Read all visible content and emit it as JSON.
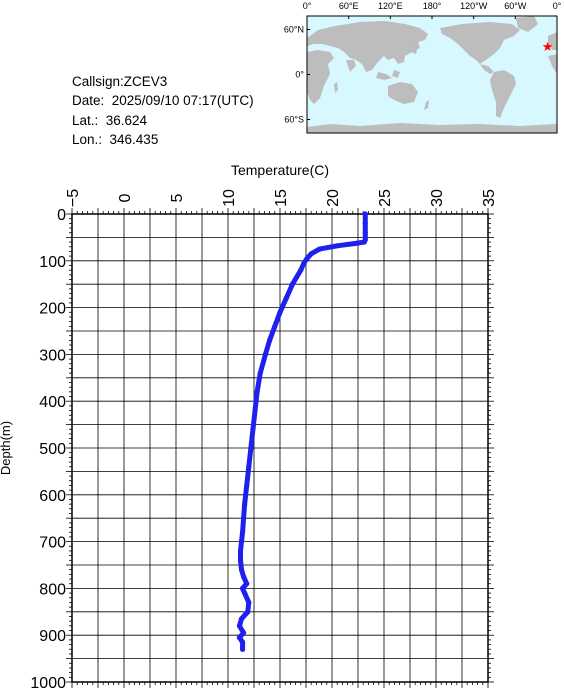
{
  "info": {
    "callsign": "Callsign:ZCEV3",
    "date": "Date:  2025/09/10 07:17(UTC)",
    "lat": "Lat.:  36.624",
    "lon": "Lon.:  346.435"
  },
  "map": {
    "top_labels": [
      "0°",
      "60°E",
      "120°E",
      "180°",
      "120°W",
      "60°W",
      "0°"
    ],
    "left_labels": [
      "60°N",
      "0°",
      "60°S"
    ],
    "ocean_color": "#d8f8ff",
    "land_color": "#bdbdbd",
    "marker": {
      "lon": 346.435,
      "lat": 36.624,
      "color": "#ff0000",
      "icon": "star-icon"
    }
  },
  "chart_data": {
    "type": "line",
    "xlabel": "Temperature(C)",
    "ylabel": "Depth(m)",
    "xlim": [
      -5,
      35
    ],
    "ylim": [
      1000,
      0
    ],
    "x_ticks": [
      -5,
      0,
      5,
      10,
      15,
      20,
      25,
      30,
      35
    ],
    "y_ticks": [
      0,
      100,
      200,
      300,
      400,
      500,
      600,
      700,
      800,
      900,
      1000
    ],
    "grid": true,
    "series_color": "#2020ee",
    "series": [
      {
        "x": [
          23.2,
          23.2,
          23.2,
          23.2,
          23.1,
          22.2,
          20.5,
          18.8,
          18.0,
          17.6,
          17.3,
          17.0,
          16.2,
          15.6,
          15.0,
          14.5,
          14.0,
          13.6,
          13.1,
          12.8,
          12.6,
          12.4,
          12.2,
          12.0,
          11.8,
          11.6,
          11.5,
          11.4,
          11.3,
          11.2,
          11.2,
          11.3,
          11.5,
          11.8,
          11.4,
          11.6,
          12.0,
          11.9,
          11.3,
          11.1,
          11.5,
          11.1,
          11.4,
          11.4
        ],
        "y": [
          0,
          20,
          40,
          55,
          60,
          63,
          68,
          75,
          85,
          95,
          105,
          120,
          150,
          180,
          210,
          240,
          270,
          300,
          340,
          380,
          420,
          460,
          500,
          540,
          580,
          620,
          650,
          680,
          700,
          720,
          740,
          760,
          775,
          790,
          800,
          810,
          830,
          850,
          865,
          880,
          895,
          905,
          915,
          930
        ]
      }
    ]
  }
}
